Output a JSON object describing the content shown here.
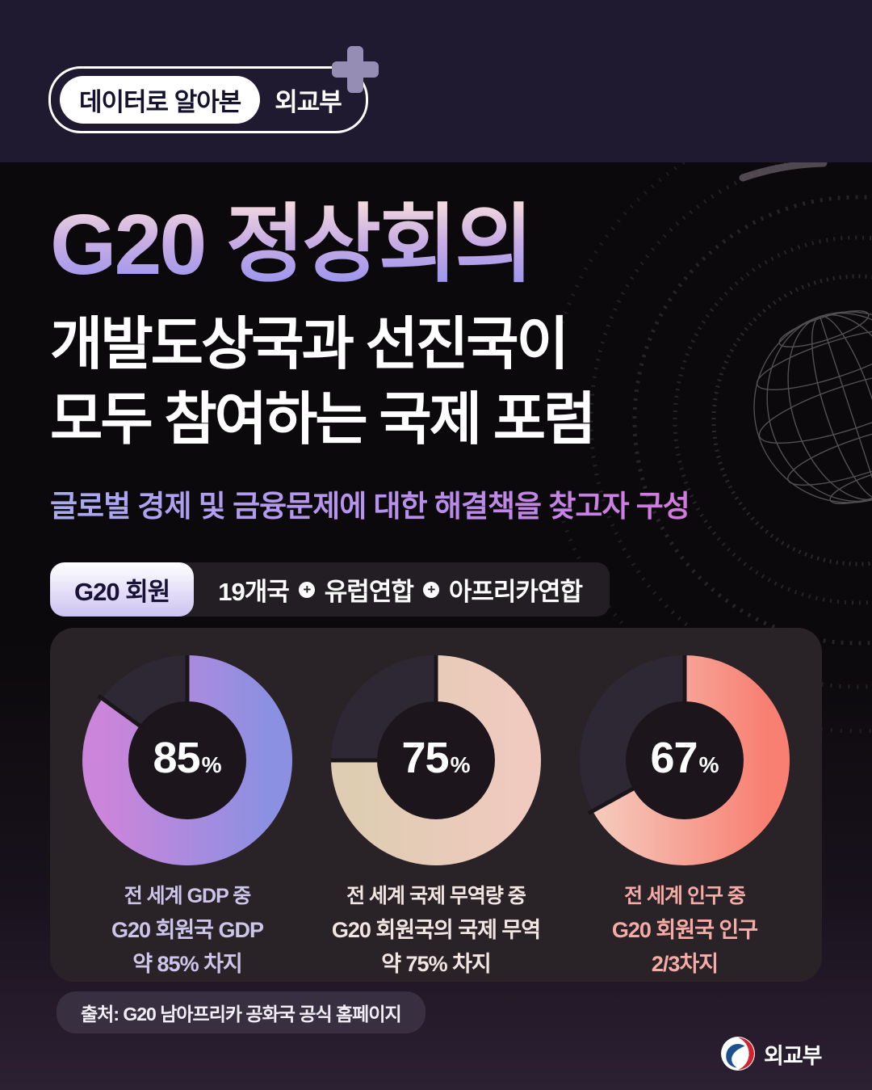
{
  "header": {
    "badge": {
      "label_left": "데이터로 알아본",
      "label_right": "외교부"
    }
  },
  "hero": {
    "title": "G20 정상회의",
    "subtitle_line1": "개발도상국과 선진국이",
    "subtitle_line2": "모두 참여하는 국제 포럼",
    "tagline": "글로벌 경제 및 금융문제에 대한 해결책을 찾고자 구성"
  },
  "membership": {
    "label": "G20 회원",
    "items": [
      "19개국",
      "유럽연합",
      "아프리카연합"
    ],
    "separator": "+"
  },
  "chart_data": {
    "type": "donut",
    "legend_position": "none",
    "panel_color": "#292227",
    "charts": [
      {
        "name": "share-of-world-gdp",
        "value": 85,
        "unit": "%",
        "remainder": 15,
        "gradient": [
          "#cb85da",
          "#8b90e2"
        ],
        "remainder_color": "#2e2834",
        "hole_color": "#1c161c",
        "caption_color": "#cdc6ea",
        "caption_lines": [
          "전 세계 GDP 중",
          "G20  회원국 GDP",
          "약 85% 차지"
        ]
      },
      {
        "name": "share-of-world-trade",
        "value": 75,
        "unit": "%",
        "remainder": 25,
        "gradient": [
          "#decdb2",
          "#f0cabf"
        ],
        "remainder_color": "#2e2834",
        "hole_color": "#1c161c",
        "caption_color": "#f2e6e2",
        "caption_lines": [
          "전 세계 국제 무역량 중",
          "G20 회원국의 국제 무역",
          "약 75% 차지"
        ]
      },
      {
        "name": "share-of-world-population",
        "value": 67,
        "unit": "%",
        "remainder": 33,
        "gradient": [
          "#f5c8ba",
          "#f87f72"
        ],
        "remainder_color": "#2e2834",
        "hole_color": "#1c161c",
        "caption_color": "#f6aba6",
        "caption_lines": [
          "전 세계 인구 중",
          "G20 회원국 인구",
          "2/3차지"
        ]
      }
    ]
  },
  "source": {
    "text": "출처: G20  남아프리카 공화국 공식 홈페이지"
  },
  "footer": {
    "logo_text": "외교부"
  }
}
